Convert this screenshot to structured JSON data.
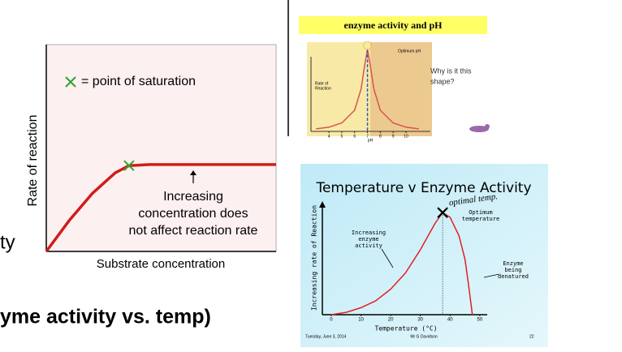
{
  "slide_text": {
    "left_fragment": "ty",
    "bottom_heading": "yme activity vs. temp)"
  },
  "chart_data": [
    {
      "type": "line",
      "y_label": "Rate of reaction",
      "x_label": "Substrate concentration",
      "legend_text": "= point of saturation",
      "annotation_lines": [
        "Increasing",
        "concentration does",
        "not affect reaction rate"
      ],
      "x": [
        0,
        1,
        2,
        3,
        3.6,
        4.5,
        10
      ],
      "values": [
        0,
        1.5,
        2.8,
        3.8,
        4.15,
        4.2,
        4.2
      ],
      "color": "#d01c1c",
      "xlim": [
        0,
        10
      ],
      "ylim": [
        0,
        10
      ]
    },
    {
      "type": "line",
      "title": "enzyme activity and pH",
      "y_label_lines": [
        "Rate of",
        "Reaction"
      ],
      "x_label": "pH",
      "peak_label": "Optimum pH",
      "question_lines": [
        "Why is it this",
        "shape?"
      ],
      "x": [
        3,
        4,
        5,
        6,
        6.5,
        6.8,
        7,
        7.2,
        7.5,
        8,
        9,
        10,
        11
      ],
      "values": [
        0.3,
        0.5,
        1,
        2.5,
        5,
        8,
        9.7,
        8,
        5,
        2.5,
        1,
        0.5,
        0.3
      ],
      "color": "#d9534f",
      "xlim": [
        2.6,
        11.9
      ],
      "ylim": [
        0,
        10
      ],
      "xticks": [
        4,
        5,
        6,
        7,
        8,
        9,
        10
      ]
    },
    {
      "type": "line",
      "title": "Temperature v Enzyme Activity",
      "handwritten_note": "optimal temp.",
      "optimum_lines": [
        "Optimum",
        "temperature"
      ],
      "rising_lines": [
        "Increasing",
        "enzyme",
        "activity"
      ],
      "falling_lines": [
        "Enzyme",
        "being",
        "denatured"
      ],
      "y_label": "Increasing rate of Reaction",
      "x_label": "Temperature (°C)",
      "footer_date": "Tuesday, June 3, 2014",
      "footer_author": "Mr G Davidson",
      "slide_number": 22,
      "x": [
        0,
        5,
        10,
        15,
        20,
        25,
        30,
        35,
        37.5,
        40,
        43,
        45,
        46,
        47,
        47.5
      ],
      "values": [
        0,
        0.2,
        0.6,
        1.2,
        2.2,
        3.6,
        5.6,
        7.9,
        8.8,
        8.4,
        6.8,
        4.8,
        3,
        1,
        0
      ],
      "color": "#e02020",
      "xlim": [
        -3,
        52.5
      ],
      "ylim": [
        0,
        10
      ],
      "xticks": [
        0,
        10,
        20,
        30,
        40,
        50
      ]
    }
  ]
}
